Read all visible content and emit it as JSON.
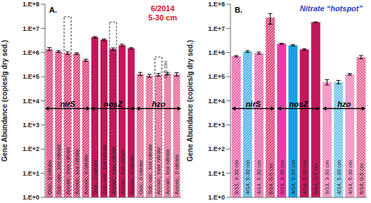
{
  "chart_data": [
    {
      "type": "bar",
      "title": "A.",
      "subtitle": {
        "text": [
          "6/2014",
          "5-30 cm"
        ],
        "color": "#e0102a"
      },
      "y_label": "Gene Abundance (copies/g dry sed.)",
      "log": "y",
      "grid": false,
      "tick_labels": "y",
      "ylim": [
        1,
        100000000
      ],
      "yticks": [
        {
          "value": 1,
          "label": "1.E+0"
        },
        {
          "value": 10,
          "label": "1.E+1"
        },
        {
          "value": 100,
          "label": "1.E+2"
        },
        {
          "value": 1000,
          "label": "1.E+3"
        },
        {
          "value": 10000,
          "label": "1.E+4"
        },
        {
          "value": 100000,
          "label": "1.E+5"
        },
        {
          "value": 1000000,
          "label": "1.E+6"
        },
        {
          "value": 10000000,
          "label": "1.E+7"
        },
        {
          "value": 100000000,
          "label": "1.E+8"
        }
      ],
      "groups": [
        {
          "name": "nirS",
          "size": 5
        },
        {
          "name": "nosZ",
          "size": 5
        },
        {
          "name": "hzo",
          "size": 5
        }
      ],
      "categories": [
        "Oxic, 0 nitrate",
        "Sub-oxic, low nitrate",
        "Anoxic, max nitrate",
        "Anoxic, low nitrate",
        "Anoxic, 0 nitrate",
        "Oxic, 0 nitrate",
        "Sub-oxic, low nitrate",
        "Anoxic, max nitrate",
        "Anoxic, low nitrate",
        "Anoxic, 0 nitrate",
        "Oxic, 0 nitrate",
        "Sub-oxic, low nitrate",
        "Anoxic, max nitrate",
        "Anoxic, low nitrate",
        "Anoxic, 0 nitrate"
      ],
      "values": [
        1400000,
        1100000,
        950000,
        900000,
        480000,
        4300000,
        3400000,
        1400000,
        2000000,
        1500000,
        130000,
        110000,
        120000,
        135000,
        125000
      ],
      "errors": [
        200000,
        100000,
        120000,
        80000,
        50000,
        300000,
        250000,
        150000,
        200000,
        100000,
        20000,
        15000,
        15000,
        15000,
        20000
      ],
      "colors": [
        "#d81b60",
        "#d81b60",
        "#d81b60",
        "#d81b60",
        "#d81b60",
        "#c2185b",
        "#c2185b",
        "#c2185b",
        "#c2185b",
        "#c2185b",
        "#d81b60",
        "#d81b60",
        "#d81b60",
        "#d81b60",
        "#d81b60"
      ],
      "outline": {
        "name": "0-5 cm",
        "line_style": "dashed",
        "values": [
          null,
          null,
          30000000,
          null,
          null,
          null,
          null,
          18000000,
          null,
          null,
          null,
          null,
          650000,
          null,
          null
        ]
      }
    },
    {
      "type": "bar",
      "title": "B.",
      "subtitle": {
        "text": [
          "Nitrate “hotspot”"
        ],
        "color": "#1f3fbf"
      },
      "y_label": "Gene Abundance (copies/g dry sed.)",
      "log": "y",
      "grid": false,
      "tick_labels": "y",
      "ylim": [
        1,
        100000000
      ],
      "yticks": [
        {
          "value": 1,
          "label": "1.E+0"
        },
        {
          "value": 10,
          "label": "1.E+1"
        },
        {
          "value": 100,
          "label": "1.E+2"
        },
        {
          "value": 1000,
          "label": "1.E+3"
        },
        {
          "value": 10000,
          "label": "1.E+4"
        },
        {
          "value": 100000,
          "label": "1.E+5"
        },
        {
          "value": 1000000,
          "label": "1.E+6"
        },
        {
          "value": 10000000,
          "label": "1.E+7"
        },
        {
          "value": 100000000,
          "label": "1.E+8"
        }
      ],
      "groups": [
        {
          "name": "nirS",
          "size": 4
        },
        {
          "name": "nosZ",
          "size": 4
        },
        {
          "name": "hzo",
          "size": 4
        }
      ],
      "categories": [
        "9/13, 3-30 cm",
        "4/14, 5-30 cm",
        "4/14, 5-30 cm",
        "6/14, 0-5 cm",
        "9/13, 3-30 cm",
        "4/14, 5-30 cm",
        "4/14, 5-30 cm",
        "6/14, 0-5 cm",
        "9/13, 3-30 cm",
        "4/14, 5-30 cm",
        "4/14, 5-30 cm",
        "6/14, 0-5 cm"
      ],
      "values": [
        700000,
        1100000,
        950000,
        28000000,
        2300000,
        2000000,
        1350000,
        18000000,
        60000,
        60000,
        125000,
        650000
      ],
      "errors": [
        50000,
        100000,
        100000,
        13000000,
        100000,
        150000,
        100000,
        500000,
        15000,
        10000,
        10000,
        100000
      ],
      "colors": [
        "#e8489a",
        "#29a8e0",
        "#e8489a",
        "#d81b60",
        "#e83ca8",
        "#1aa0e0",
        "#c2185b",
        "#c2185b",
        "#e8489a",
        "#29a8e0",
        "#e8489a",
        "#d81b60"
      ]
    }
  ]
}
